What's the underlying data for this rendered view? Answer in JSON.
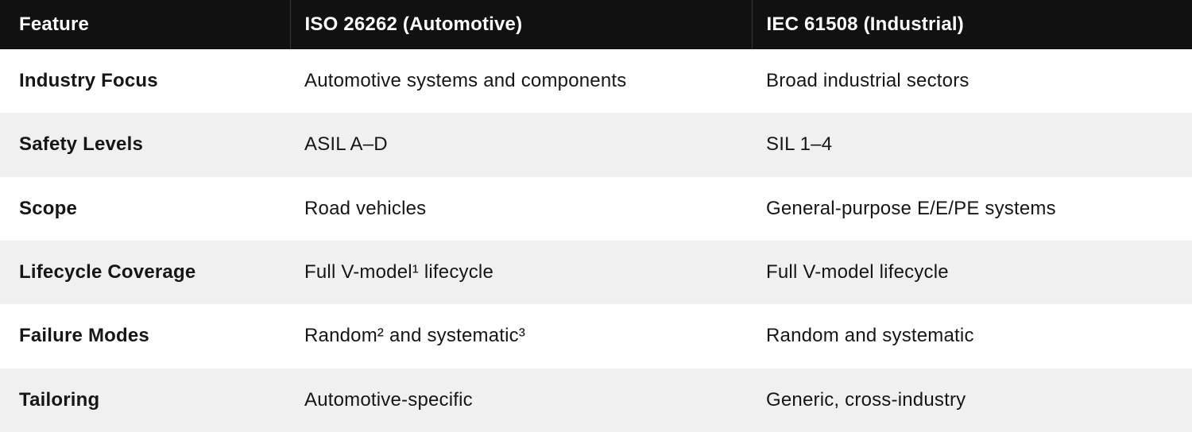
{
  "colors": {
    "header_bg": "#111111",
    "header_text": "#ffffff",
    "header_divider": "#333333",
    "row_bg": "#ffffff",
    "row_alt_bg": "#f0f0f0",
    "body_text": "#161616"
  },
  "table": {
    "columns": [
      {
        "key": "feature",
        "label": "Feature"
      },
      {
        "key": "iso",
        "label": "ISO 26262 (Automotive)"
      },
      {
        "key": "iec",
        "label": "IEC 61508 (Industrial)"
      }
    ],
    "rows": [
      {
        "feature": "Industry Focus",
        "iso": "Automotive systems and components",
        "iec": "Broad industrial sectors"
      },
      {
        "feature": "Safety Levels",
        "iso": "ASIL A–D",
        "iec": "SIL 1–4"
      },
      {
        "feature": "Scope",
        "iso": "Road vehicles",
        "iec": "General-purpose E/E/PE systems"
      },
      {
        "feature": "Lifecycle Coverage",
        "iso": "Full V-model¹ lifecycle",
        "iec": "Full V-model lifecycle"
      },
      {
        "feature": "Failure Modes",
        "iso": "Random² and systematic³",
        "iec": "Random and systematic"
      },
      {
        "feature": "Tailoring",
        "iso": "Automotive-specific",
        "iec": "Generic, cross-industry"
      }
    ]
  }
}
